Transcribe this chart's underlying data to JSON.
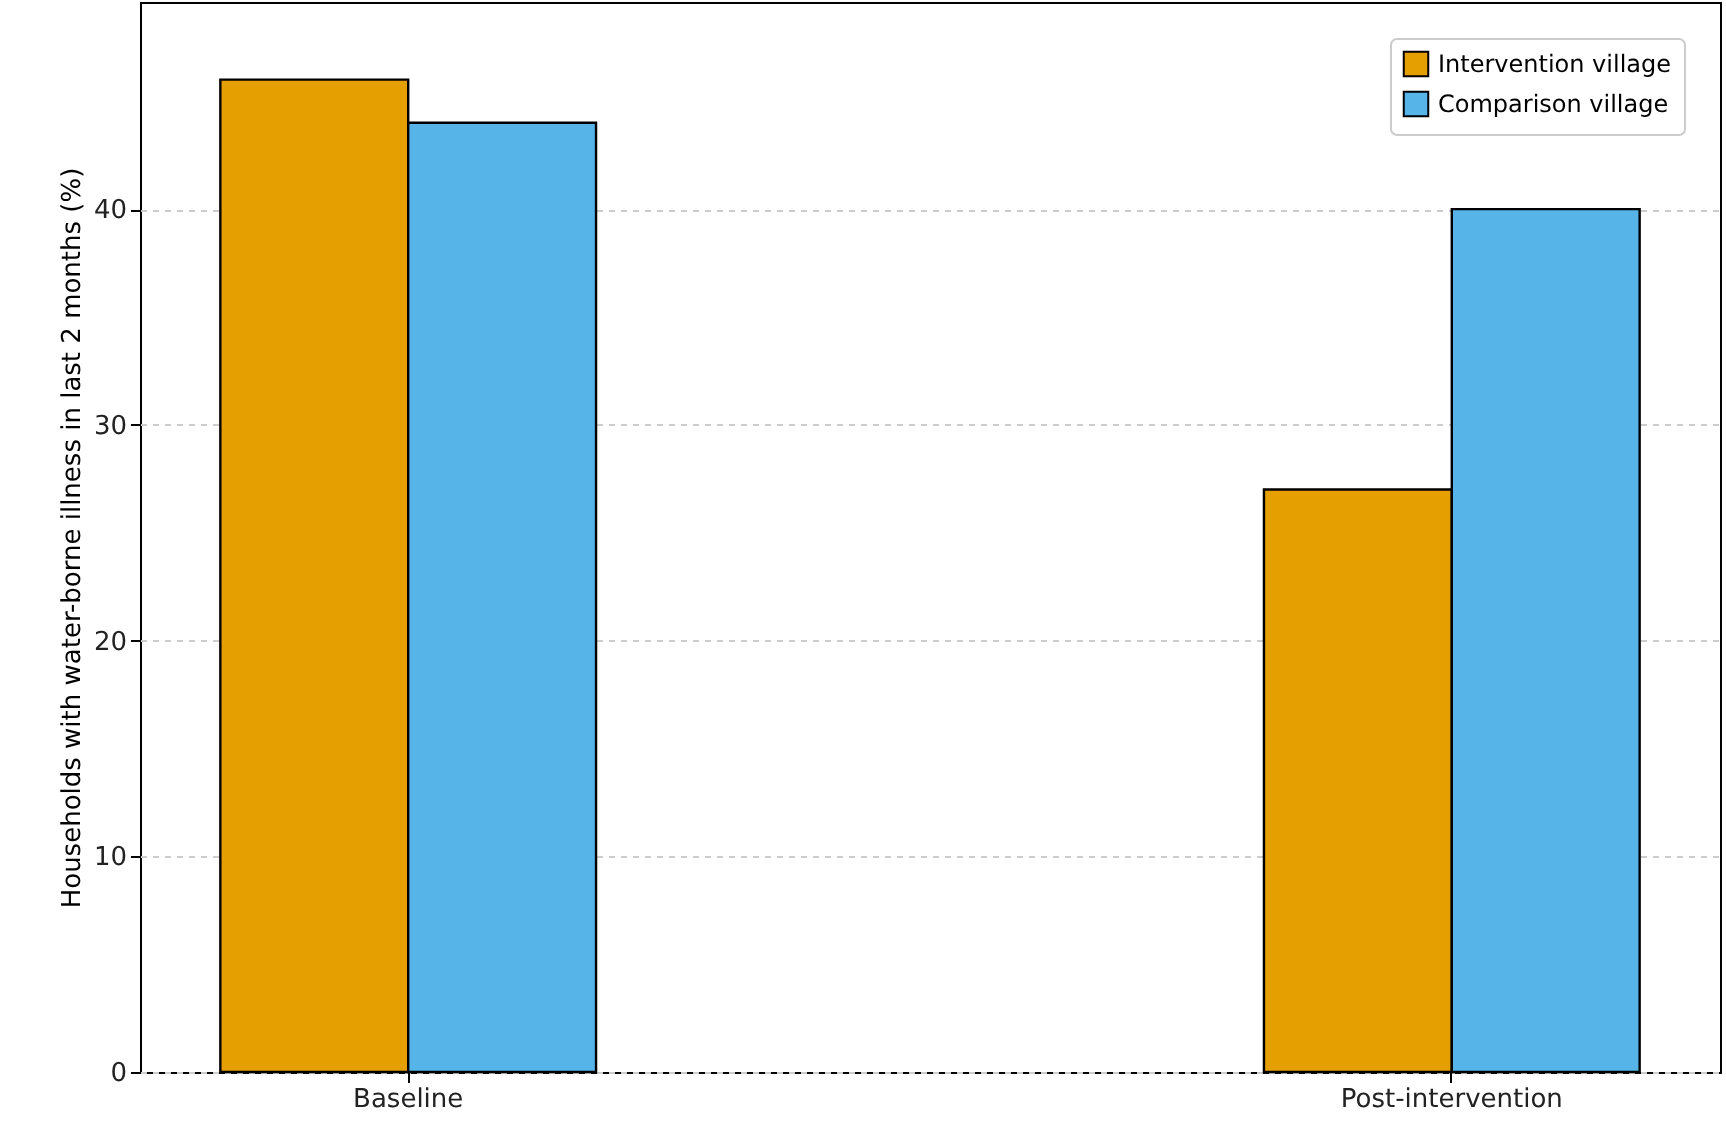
{
  "chart_data": {
    "type": "bar",
    "ylabel": "Households with water-borne illness in last 2 months (%)",
    "categories": [
      "Baseline",
      "Post-intervention"
    ],
    "series": [
      {
        "name": "Intervention village",
        "color": "#e69f00",
        "values": [
          46,
          27
        ]
      },
      {
        "name": "Comparison village",
        "color": "#56b4e9",
        "values": [
          44,
          40
        ]
      }
    ],
    "ylim": [
      0,
      49.6
    ],
    "yticks": [
      0,
      10,
      20,
      30,
      40
    ],
    "grid": "y",
    "legend": "top right"
  }
}
